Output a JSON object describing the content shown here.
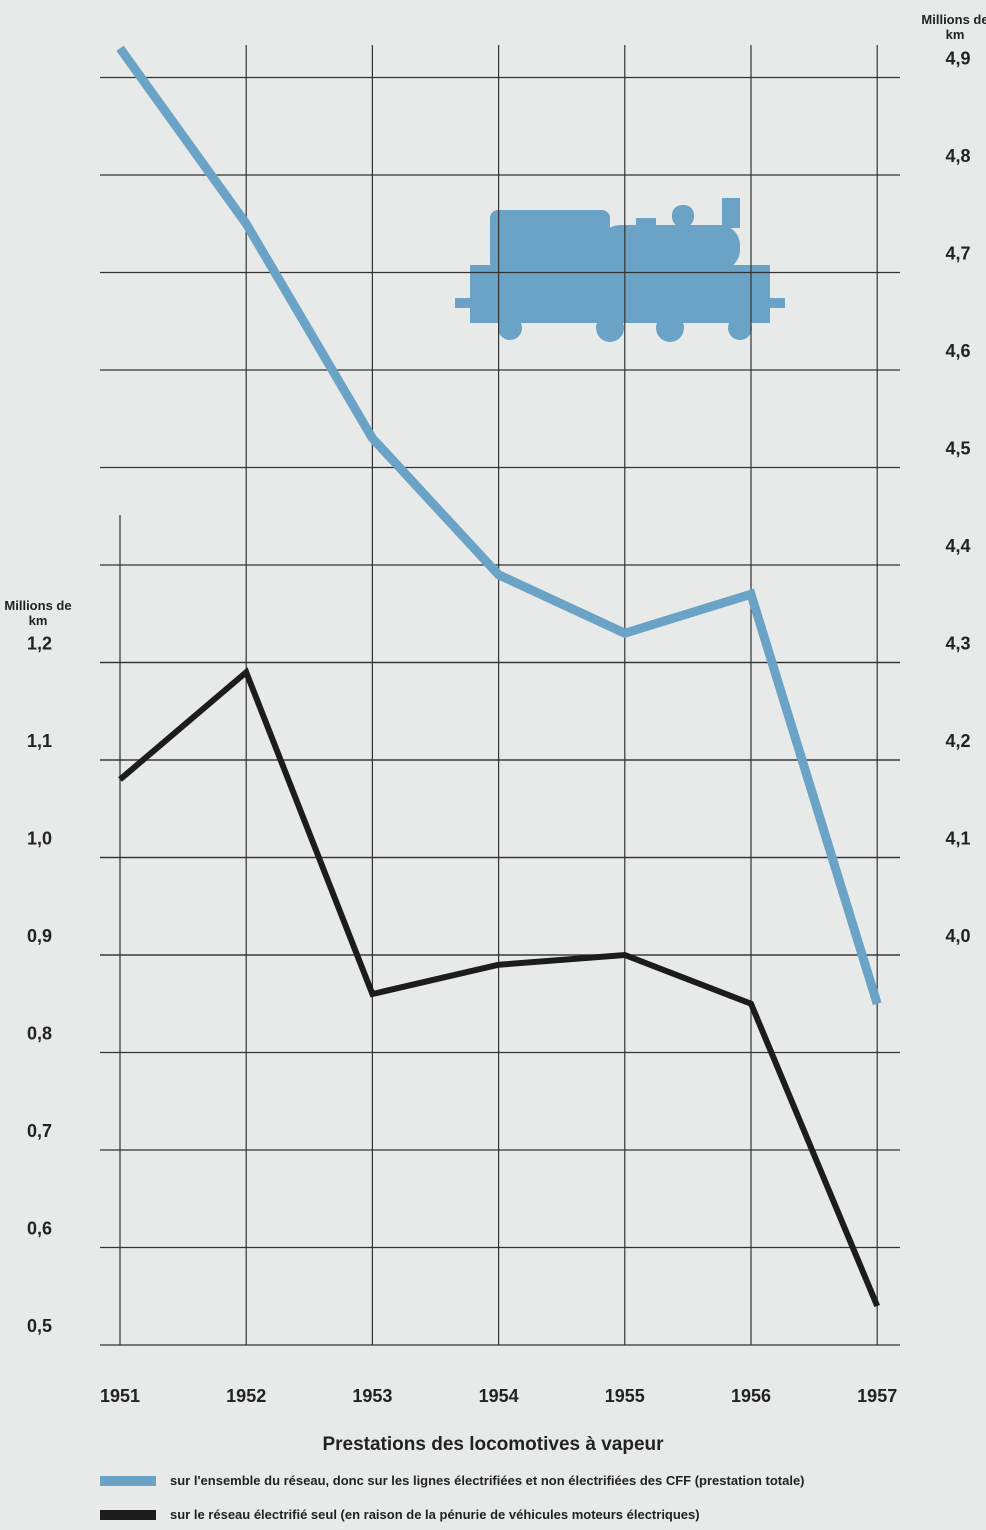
{
  "chart_data": {
    "type": "line",
    "title": "Prestations des locomotives à vapeur",
    "y_label": "Millions de km",
    "y2_label": "Millions de km",
    "categories": [
      "1951",
      "1952",
      "1953",
      "1954",
      "1955",
      "1956",
      "1957"
    ],
    "series": [
      {
        "name": "sur l'ensemble du réseau, donc sur les lignes électrifiées et non électrifiées des CFF (prestation totale)",
        "color": "#6aa3c6",
        "axis": "y2",
        "values": [
          4.93,
          4.75,
          4.53,
          4.39,
          4.33,
          4.37,
          3.95
        ]
      },
      {
        "name": "sur le réseau électrifié seul (en raison de la pénurie de véhicules moteurs électriques)",
        "color": "#1c1c1c",
        "axis": "y",
        "values": [
          1.08,
          1.19,
          0.86,
          0.89,
          0.9,
          0.85,
          0.54
        ]
      }
    ],
    "ylim": [
      0.5,
      1.8
    ],
    "yticks": [
      {
        "value": 0.5,
        "label": "0,5"
      },
      {
        "value": 0.6,
        "label": "0,6"
      },
      {
        "value": 0.7,
        "label": "0,7"
      },
      {
        "value": 0.8,
        "label": "0,8"
      },
      {
        "value": 0.9,
        "label": "0,9"
      },
      {
        "value": 1.0,
        "label": "1,0"
      },
      {
        "value": 1.1,
        "label": "1,1"
      },
      {
        "value": 1.2,
        "label": "1,2"
      }
    ],
    "y2lim": [
      3.6,
      4.9
    ],
    "y2ticks": [
      {
        "value": 4.0,
        "label": "4,0"
      },
      {
        "value": 4.1,
        "label": "4,1"
      },
      {
        "value": 4.2,
        "label": "4,2"
      },
      {
        "value": 4.3,
        "label": "4,3"
      },
      {
        "value": 4.4,
        "label": "4,4"
      },
      {
        "value": 4.5,
        "label": "4,5"
      },
      {
        "value": 4.6,
        "label": "4,6"
      },
      {
        "value": 4.7,
        "label": "4,7"
      },
      {
        "value": 4.8,
        "label": "4,8"
      },
      {
        "value": 4.9,
        "label": "4,9"
      }
    ],
    "grid": true
  }
}
